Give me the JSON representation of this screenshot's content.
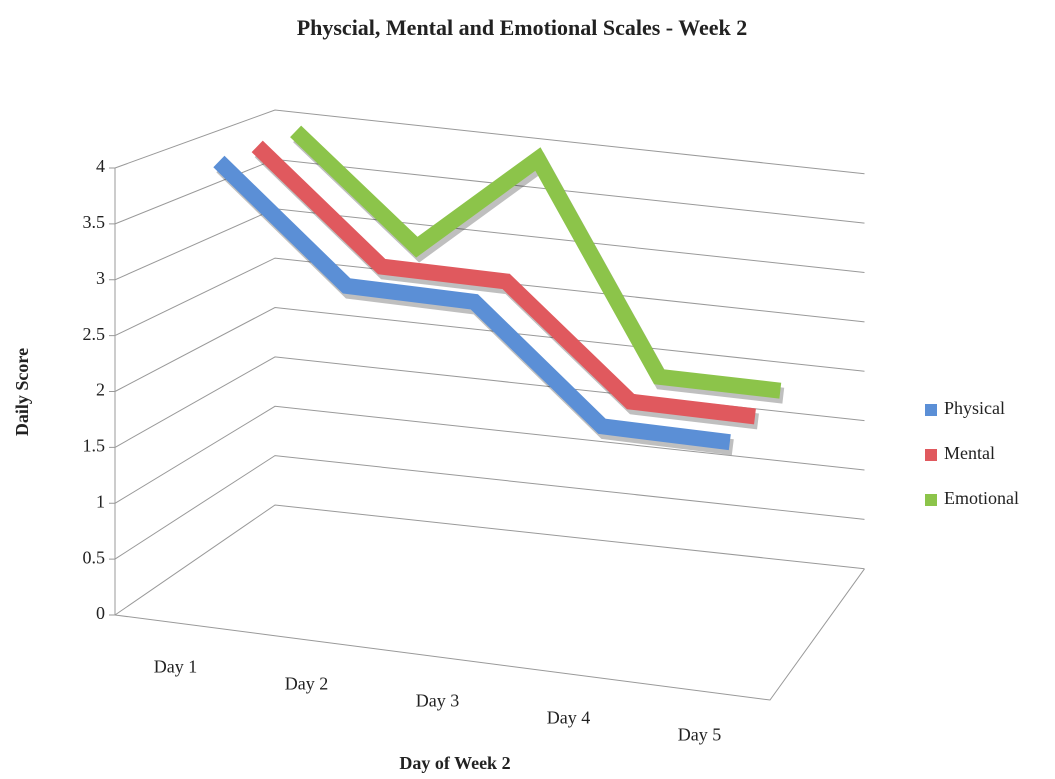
{
  "chart_data": {
    "type": "line3d",
    "title": "Physcial, Mental and Emotional Scales - Week 2",
    "x_label": "Day of Week 2",
    "y_label": "Daily Score",
    "categories": [
      "Day 1",
      "Day 2",
      "Day 3",
      "Day 4",
      "Day 5"
    ],
    "series": [
      {
        "name": "Physical",
        "color": "#5b8fd6",
        "values": [
          4,
          3,
          3,
          2,
          2
        ]
      },
      {
        "name": "Mental",
        "color": "#e0595e",
        "values": [
          4,
          3,
          3,
          2,
          2
        ]
      },
      {
        "name": "Emotional",
        "color": "#8cc44a",
        "values": [
          4,
          3,
          4,
          2,
          2
        ]
      }
    ],
    "ylim": [
      0,
      4
    ],
    "yticks": [
      0,
      0.5,
      1,
      1.5,
      2,
      2.5,
      3,
      3.5,
      4
    ],
    "grid": true,
    "legend": "right"
  }
}
